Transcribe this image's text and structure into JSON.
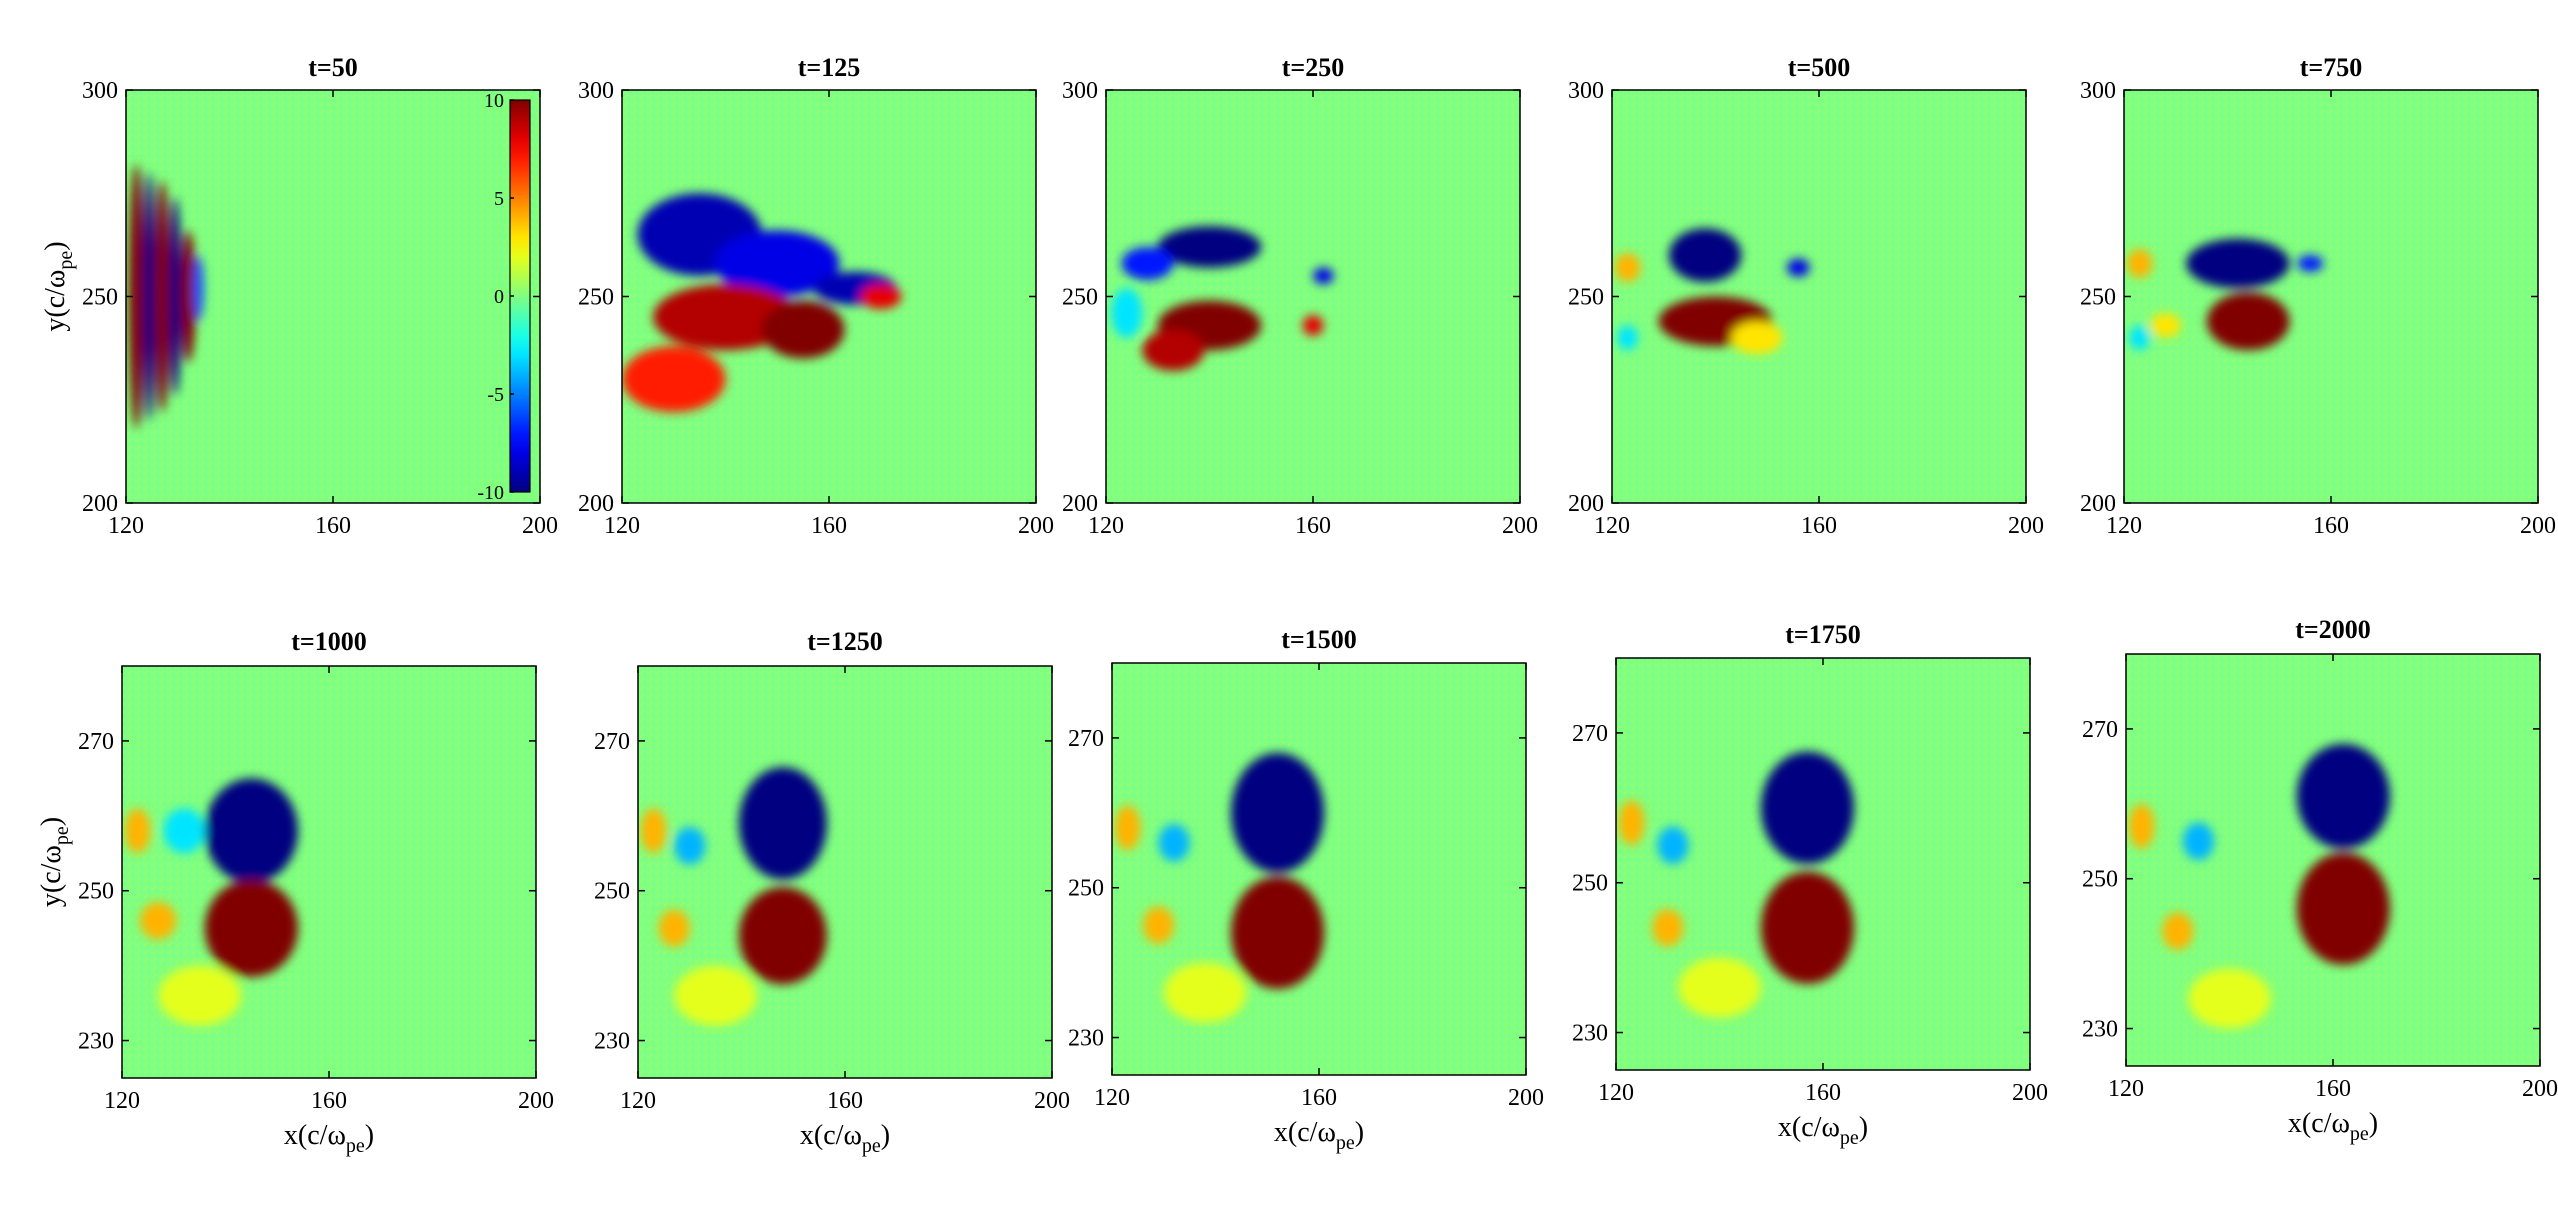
{
  "chart_data": {
    "type": "heatmap",
    "colormap": "jet",
    "background_value": 0,
    "colorbar": {
      "ticks": [
        10,
        5,
        0,
        -5,
        -10
      ],
      "range": [
        -10,
        10
      ],
      "panel_index": 0
    },
    "panels": [
      {
        "title": "t=50",
        "xlim": [
          120,
          200
        ],
        "ylim": [
          200,
          300
        ],
        "xticks": [
          120,
          160,
          200
        ],
        "yticks": [
          200,
          250,
          300
        ],
        "ylabel": "y(c/ω_pe)",
        "xlabel": "",
        "features": [
          {
            "x": 122,
            "y": 250,
            "rx": 1.5,
            "ry": 32,
            "value": 10
          },
          {
            "x": 124.5,
            "y": 250,
            "rx": 1.2,
            "ry": 30,
            "value": -10
          },
          {
            "x": 127,
            "y": 250,
            "rx": 1.5,
            "ry": 28,
            "value": 10
          },
          {
            "x": 129.5,
            "y": 250,
            "rx": 1.2,
            "ry": 24,
            "value": -10
          },
          {
            "x": 132,
            "y": 250,
            "rx": 1.5,
            "ry": 16,
            "value": 10
          },
          {
            "x": 134,
            "y": 252,
            "rx": 1,
            "ry": 8,
            "value": -6
          }
        ]
      },
      {
        "title": "t=125",
        "xlim": [
          120,
          200
        ],
        "ylim": [
          200,
          300
        ],
        "xticks": [
          120,
          160,
          200
        ],
        "yticks": [
          200,
          250,
          300
        ],
        "ylabel": "",
        "xlabel": "",
        "features": [
          {
            "x": 135,
            "y": 265,
            "rx": 12,
            "ry": 10,
            "value": -9
          },
          {
            "x": 150,
            "y": 258,
            "rx": 12,
            "ry": 8,
            "value": -8
          },
          {
            "x": 165,
            "y": 252,
            "rx": 8,
            "ry": 4,
            "value": -9
          },
          {
            "x": 140,
            "y": 245,
            "rx": 14,
            "ry": 8,
            "value": 9
          },
          {
            "x": 155,
            "y": 242,
            "rx": 8,
            "ry": 7,
            "value": 10
          },
          {
            "x": 130,
            "y": 230,
            "rx": 10,
            "ry": 8,
            "value": 7
          },
          {
            "x": 170,
            "y": 250,
            "rx": 4,
            "ry": 3,
            "value": 8
          }
        ]
      },
      {
        "title": "t=250",
        "xlim": [
          120,
          200
        ],
        "ylim": [
          200,
          300
        ],
        "xticks": [
          120,
          160,
          200
        ],
        "yticks": [
          200,
          250,
          300
        ],
        "ylabel": "",
        "xlabel": "",
        "features": [
          {
            "x": 140,
            "y": 262,
            "rx": 10,
            "ry": 5,
            "value": -10
          },
          {
            "x": 128,
            "y": 258,
            "rx": 5,
            "ry": 4,
            "value": -7
          },
          {
            "x": 140,
            "y": 243,
            "rx": 10,
            "ry": 6,
            "value": 10
          },
          {
            "x": 133,
            "y": 237,
            "rx": 6,
            "ry": 5,
            "value": 9
          },
          {
            "x": 162,
            "y": 255,
            "rx": 2,
            "ry": 2,
            "value": -8
          },
          {
            "x": 160,
            "y": 243,
            "rx": 2,
            "ry": 2.5,
            "value": 8
          },
          {
            "x": 124,
            "y": 246,
            "rx": 3,
            "ry": 6,
            "value": -3
          }
        ]
      },
      {
        "title": "t=500",
        "xlim": [
          120,
          200
        ],
        "ylim": [
          200,
          300
        ],
        "xticks": [
          120,
          160,
          200
        ],
        "yticks": [
          200,
          250,
          300
        ],
        "ylabel": "",
        "xlabel": "",
        "features": [
          {
            "x": 138,
            "y": 260,
            "rx": 7,
            "ry": 6.5,
            "value": -10
          },
          {
            "x": 140,
            "y": 244,
            "rx": 11,
            "ry": 6,
            "value": 10
          },
          {
            "x": 156,
            "y": 257,
            "rx": 2.2,
            "ry": 2.2,
            "value": -8
          },
          {
            "x": 123,
            "y": 257,
            "rx": 2.5,
            "ry": 3.5,
            "value": 4
          },
          {
            "x": 123,
            "y": 240,
            "rx": 2,
            "ry": 3,
            "value": -3
          },
          {
            "x": 148,
            "y": 240,
            "rx": 5,
            "ry": 4,
            "value": 3
          }
        ]
      },
      {
        "title": "t=750",
        "xlim": [
          120,
          200
        ],
        "ylim": [
          200,
          300
        ],
        "xticks": [
          120,
          160,
          200
        ],
        "yticks": [
          200,
          250,
          300
        ],
        "ylabel": "",
        "xlabel": "",
        "features": [
          {
            "x": 142,
            "y": 258,
            "rx": 10,
            "ry": 6,
            "value": -10
          },
          {
            "x": 144,
            "y": 244,
            "rx": 8,
            "ry": 7,
            "value": 10
          },
          {
            "x": 156,
            "y": 258,
            "rx": 2.5,
            "ry": 2,
            "value": -7
          },
          {
            "x": 123,
            "y": 258,
            "rx": 2.5,
            "ry": 3.5,
            "value": 4
          },
          {
            "x": 123,
            "y": 240,
            "rx": 2,
            "ry": 3,
            "value": -3
          },
          {
            "x": 128,
            "y": 243,
            "rx": 3,
            "ry": 3,
            "value": 3
          }
        ]
      },
      {
        "title": "t=1000",
        "xlim": [
          120,
          200
        ],
        "ylim": [
          225,
          280
        ],
        "xticks": [
          120,
          160,
          200
        ],
        "yticks": [
          230,
          250,
          270
        ],
        "ylabel": "y(c/ω_pe)",
        "xlabel": "x(c/ω_pe)",
        "features": [
          {
            "x": 145,
            "y": 258,
            "rx": 9,
            "ry": 7,
            "value": -10
          },
          {
            "x": 145,
            "y": 245,
            "rx": 9,
            "ry": 6.5,
            "value": 10
          },
          {
            "x": 123,
            "y": 258,
            "rx": 2.5,
            "ry": 3,
            "value": 4
          },
          {
            "x": 127,
            "y": 246,
            "rx": 3.5,
            "ry": 2.5,
            "value": 4
          },
          {
            "x": 132,
            "y": 258,
            "rx": 4,
            "ry": 3,
            "value": -3
          },
          {
            "x": 135,
            "y": 236,
            "rx": 8,
            "ry": 4,
            "value": 2
          }
        ]
      },
      {
        "title": "t=1250",
        "xlim": [
          120,
          200
        ],
        "ylim": [
          225,
          280
        ],
        "xticks": [
          120,
          160,
          200
        ],
        "yticks": [
          230,
          250,
          270
        ],
        "ylabel": "",
        "xlabel": "x(c/ω_pe)",
        "features": [
          {
            "x": 148,
            "y": 259,
            "rx": 8.5,
            "ry": 7.5,
            "value": -10
          },
          {
            "x": 148,
            "y": 244,
            "rx": 8.5,
            "ry": 6.5,
            "value": 10
          },
          {
            "x": 123,
            "y": 258,
            "rx": 2.5,
            "ry": 3,
            "value": 4
          },
          {
            "x": 127,
            "y": 245,
            "rx": 3,
            "ry": 2.5,
            "value": 4
          },
          {
            "x": 130,
            "y": 256,
            "rx": 3,
            "ry": 2.5,
            "value": -4
          },
          {
            "x": 135,
            "y": 236,
            "rx": 8,
            "ry": 4,
            "value": 2
          }
        ]
      },
      {
        "title": "t=1500",
        "xlim": [
          120,
          200
        ],
        "ylim": [
          225,
          280
        ],
        "xticks": [
          120,
          160,
          200
        ],
        "yticks": [
          230,
          250,
          270
        ],
        "ylabel": "",
        "xlabel": "x(c/ω_pe)",
        "features": [
          {
            "x": 152,
            "y": 260,
            "rx": 9,
            "ry": 8,
            "value": -10
          },
          {
            "x": 152,
            "y": 244,
            "rx": 9,
            "ry": 7.5,
            "value": 10
          },
          {
            "x": 123,
            "y": 258,
            "rx": 2.5,
            "ry": 3,
            "value": 4
          },
          {
            "x": 129,
            "y": 245,
            "rx": 3,
            "ry": 2.5,
            "value": 4
          },
          {
            "x": 132,
            "y": 256,
            "rx": 3,
            "ry": 2.5,
            "value": -4
          },
          {
            "x": 138,
            "y": 236,
            "rx": 8,
            "ry": 4,
            "value": 2
          }
        ]
      },
      {
        "title": "t=1750",
        "xlim": [
          120,
          200
        ],
        "ylim": [
          225,
          280
        ],
        "xticks": [
          120,
          160,
          200
        ],
        "yticks": [
          230,
          250,
          270
        ],
        "ylabel": "",
        "xlabel": "x(c/ω_pe)",
        "features": [
          {
            "x": 157,
            "y": 260,
            "rx": 9,
            "ry": 7.5,
            "value": -10
          },
          {
            "x": 157,
            "y": 244,
            "rx": 9,
            "ry": 7.5,
            "value": 10
          },
          {
            "x": 123,
            "y": 258,
            "rx": 2.5,
            "ry": 3,
            "value": 4
          },
          {
            "x": 130,
            "y": 244,
            "rx": 3,
            "ry": 2.5,
            "value": 4
          },
          {
            "x": 131,
            "y": 255,
            "rx": 3,
            "ry": 2.5,
            "value": -4
          },
          {
            "x": 140,
            "y": 236,
            "rx": 8,
            "ry": 4,
            "value": 2
          }
        ]
      },
      {
        "title": "t=2000",
        "xlim": [
          120,
          200
        ],
        "ylim": [
          225,
          280
        ],
        "xticks": [
          120,
          160,
          200
        ],
        "yticks": [
          230,
          250,
          270
        ],
        "ylabel": "",
        "xlabel": "x(c/ω_pe)",
        "features": [
          {
            "x": 162,
            "y": 261,
            "rx": 9,
            "ry": 7,
            "value": -10
          },
          {
            "x": 162,
            "y": 246,
            "rx": 9,
            "ry": 7.5,
            "value": 10
          },
          {
            "x": 123,
            "y": 257,
            "rx": 2.5,
            "ry": 3,
            "value": 4
          },
          {
            "x": 130,
            "y": 243,
            "rx": 3,
            "ry": 2.5,
            "value": 4
          },
          {
            "x": 134,
            "y": 255,
            "rx": 3,
            "ry": 2.5,
            "value": -4
          },
          {
            "x": 140,
            "y": 234,
            "rx": 8,
            "ry": 4,
            "value": 2
          }
        ]
      }
    ]
  }
}
